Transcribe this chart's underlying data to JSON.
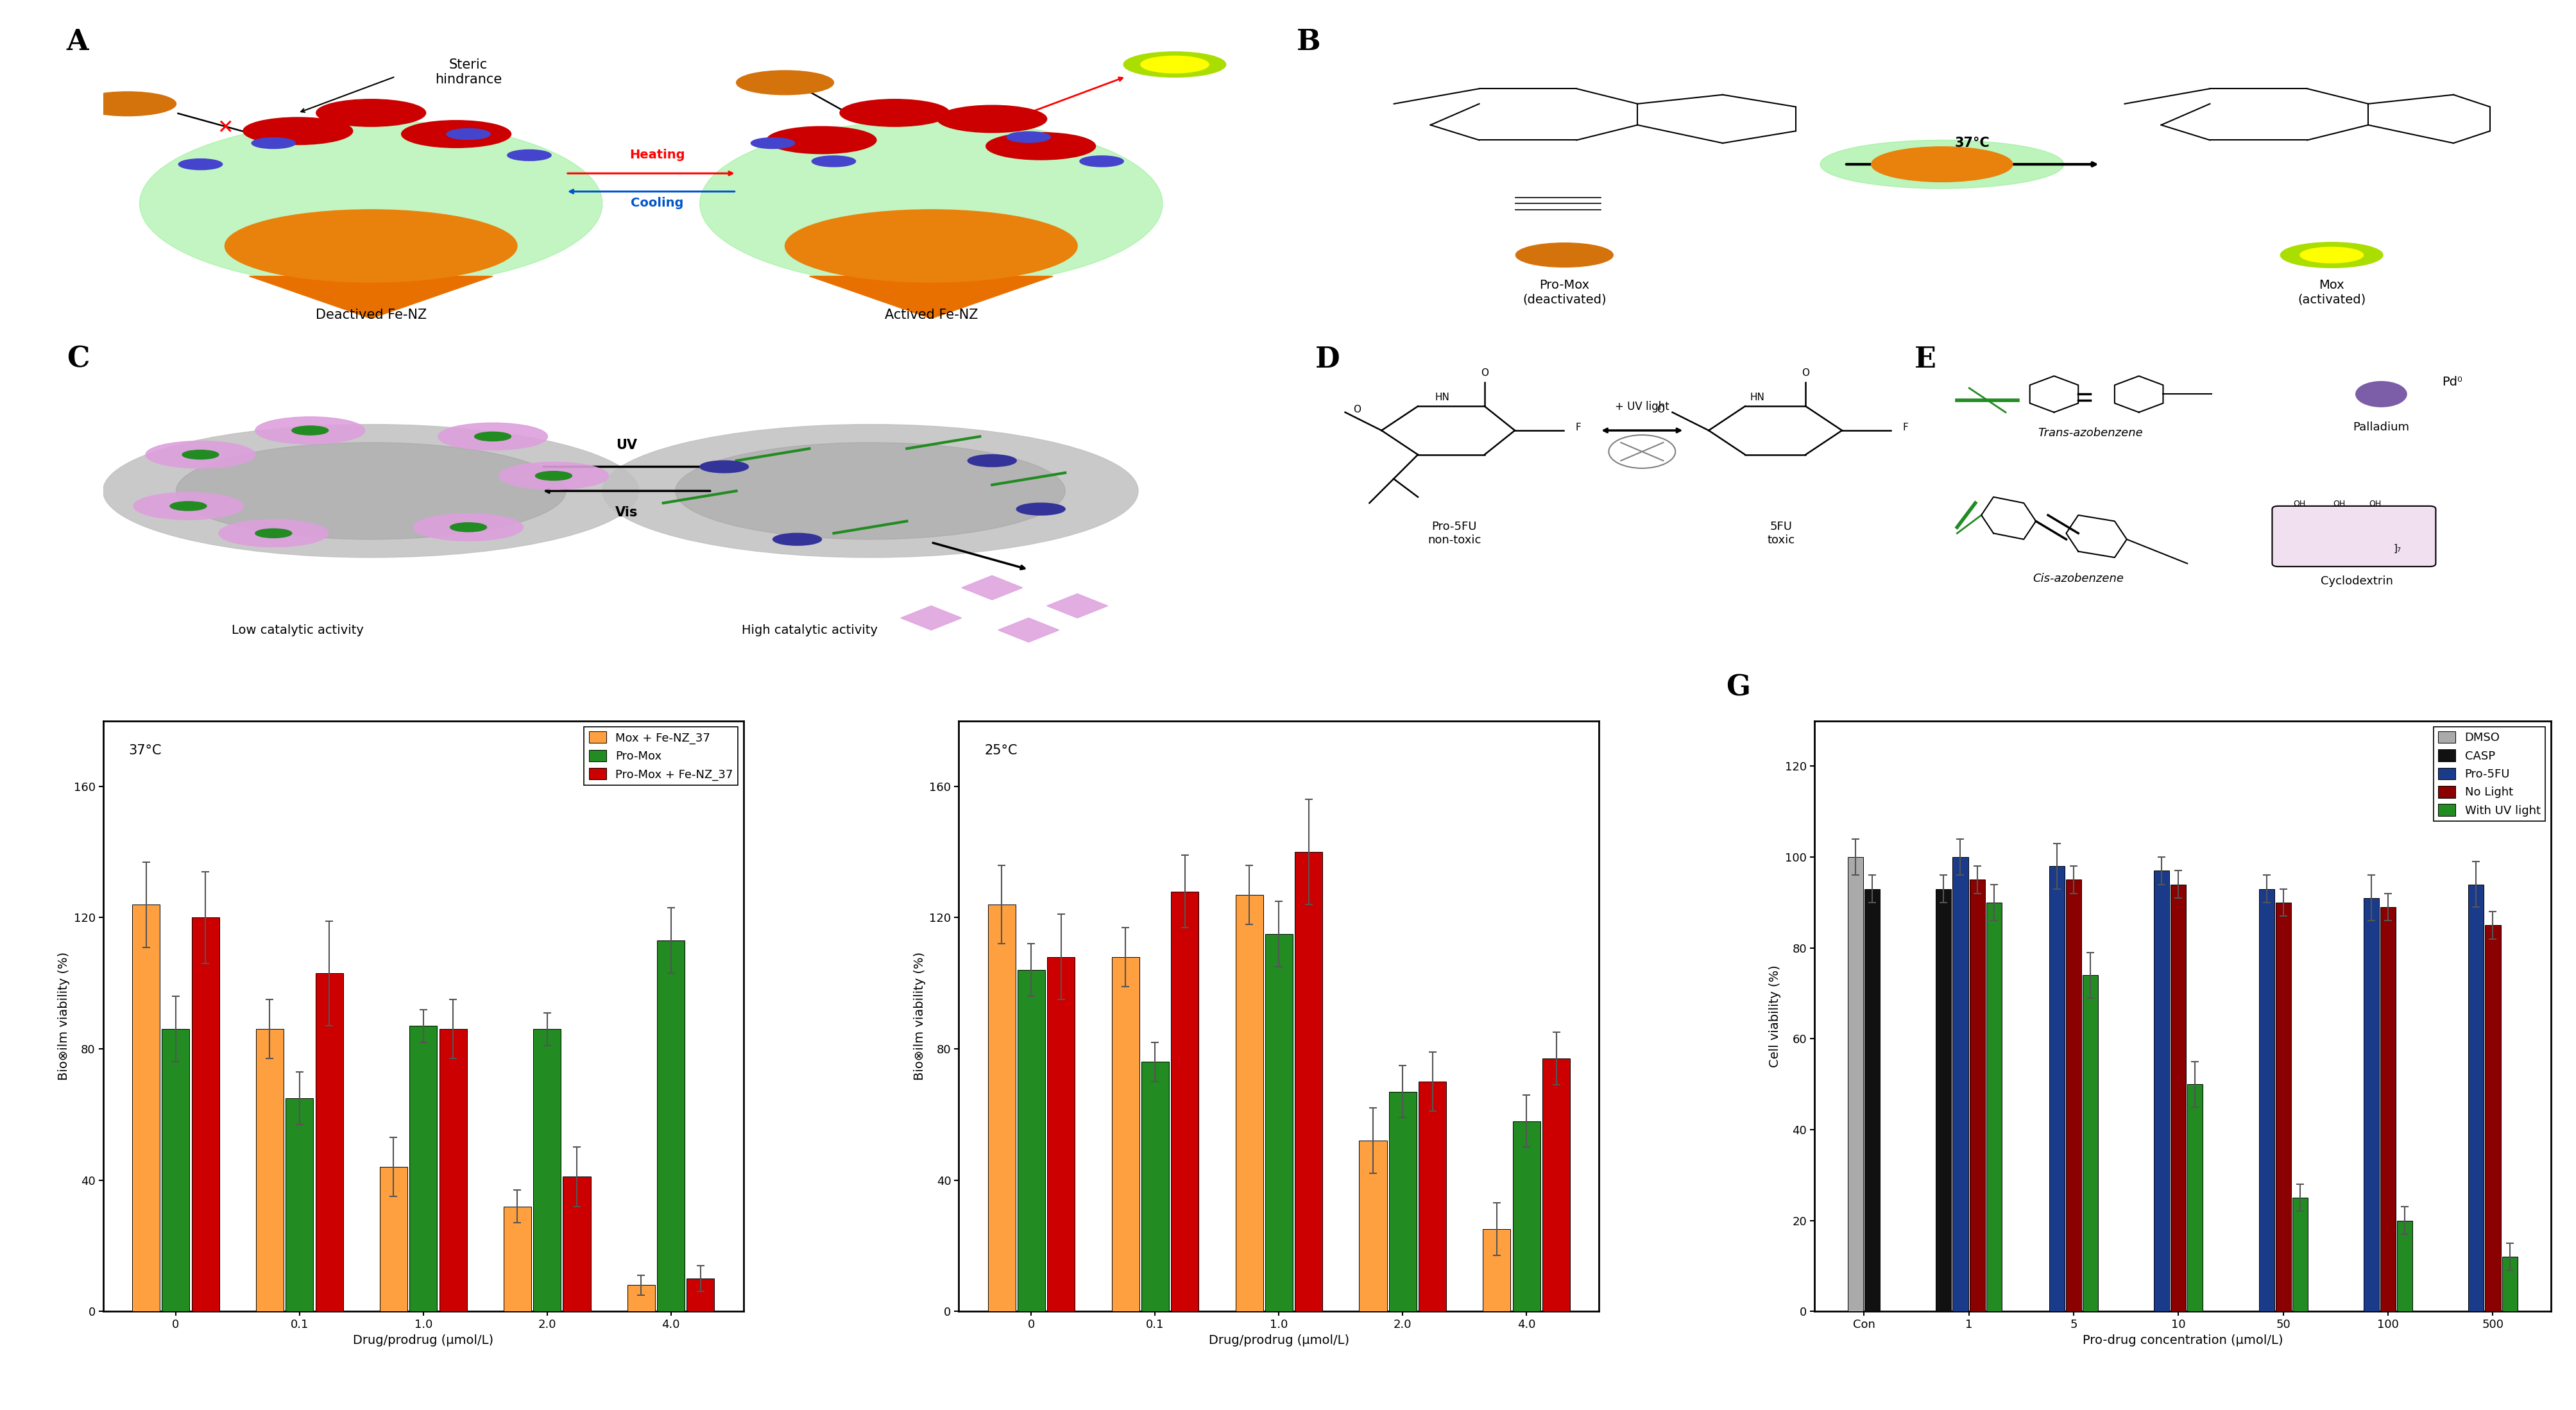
{
  "panel_F_37": {
    "title": "37°C",
    "xlabel": "Drug/prodrug (μmol/L)",
    "ylabel": "Bio⊗ilm viability (%)",
    "categories": [
      "0",
      "0.1",
      "1.0",
      "2.0",
      "4.0"
    ],
    "series": [
      {
        "name": "Mox + Fe-NZ_37",
        "values": [
          124,
          86,
          44,
          32,
          8
        ],
        "errors": [
          13,
          9,
          9,
          5,
          3
        ],
        "color": "#FFA040"
      },
      {
        "name": "Pro-Mox",
        "values": [
          86,
          65,
          87,
          86,
          113
        ],
        "errors": [
          10,
          8,
          5,
          5,
          10
        ],
        "color": "#228B22"
      },
      {
        "name": "Pro-Mox + Fe-NZ_37",
        "values": [
          120,
          103,
          86,
          41,
          10
        ],
        "errors": [
          14,
          16,
          9,
          9,
          4
        ],
        "color": "#CC0000"
      }
    ],
    "ylim": [
      0,
      180
    ],
    "yticks": [
      0,
      40,
      80,
      120,
      160
    ]
  },
  "panel_F_25": {
    "title": "25°C",
    "xlabel": "Drug/prodrug (μmol/L)",
    "ylabel": "Bio⊗ilm viability (%)",
    "categories": [
      "0",
      "0.1",
      "1.0",
      "2.0",
      "4.0"
    ],
    "series": [
      {
        "name": "Mox + Fe-NZ_37",
        "values": [
          124,
          108,
          127,
          52,
          25
        ],
        "errors": [
          12,
          9,
          9,
          10,
          8
        ],
        "color": "#FFA040"
      },
      {
        "name": "Pro-Mox",
        "values": [
          104,
          76,
          115,
          67,
          58
        ],
        "errors": [
          8,
          6,
          10,
          8,
          8
        ],
        "color": "#228B22"
      },
      {
        "name": "Pro-Mox + Fe-NZ_37",
        "values": [
          108,
          128,
          140,
          70,
          77
        ],
        "errors": [
          13,
          11,
          16,
          9,
          8
        ],
        "color": "#CC0000"
      }
    ],
    "ylim": [
      0,
      180
    ],
    "yticks": [
      0,
      40,
      80,
      120,
      160
    ]
  },
  "panel_G": {
    "xlabel": "Pro-drug concentration (μmol/L)",
    "ylabel": "Cell viability (%)",
    "categories": [
      "Con",
      "1",
      "5",
      "10",
      "50",
      "100",
      "500"
    ],
    "ylim": [
      0,
      130
    ],
    "yticks": [
      0,
      20,
      40,
      60,
      80,
      100,
      120
    ],
    "color_map": {
      "DMSO": "#AAAAAA",
      "CASP": "#111111",
      "Pro-5FU": "#1A3A8A",
      "No Light": "#8B0000",
      "With UV light": "#228B22"
    },
    "G_data": {
      "DMSO": {
        "Con": 100
      },
      "CASP": {
        "Con": 93,
        "1": 93
      },
      "Pro-5FU": {
        "1": 100,
        "5": 98,
        "10": 97,
        "50": 93,
        "100": 91,
        "500": 94
      },
      "No Light": {
        "1": 95,
        "5": 95,
        "10": 94,
        "50": 90,
        "100": 89,
        "500": 85
      },
      "With UV light": {
        "1": 90,
        "5": 74,
        "10": 50,
        "50": 25,
        "100": 20,
        "500": 12
      }
    },
    "G_errors": {
      "DMSO": {
        "Con": 4
      },
      "CASP": {
        "Con": 3,
        "1": 3
      },
      "Pro-5FU": {
        "1": 4,
        "5": 5,
        "10": 3,
        "50": 3,
        "100": 5,
        "500": 5
      },
      "No Light": {
        "1": 3,
        "5": 3,
        "10": 3,
        "50": 3,
        "100": 3,
        "500": 3
      },
      "With UV light": {
        "1": 4,
        "5": 5,
        "10": 5,
        "50": 3,
        "100": 3,
        "500": 3
      }
    },
    "groups": {
      "Con": [
        "DMSO",
        "CASP"
      ],
      "1": [
        "CASP",
        "Pro-5FU",
        "No Light",
        "With UV light"
      ],
      "5": [
        "Pro-5FU",
        "No Light",
        "With UV light"
      ],
      "10": [
        "Pro-5FU",
        "No Light",
        "With UV light"
      ],
      "50": [
        "Pro-5FU",
        "No Light",
        "With UV light"
      ],
      "100": [
        "Pro-5FU",
        "No Light",
        "With UV light"
      ],
      "500": [
        "Pro-5FU",
        "No Light",
        "With UV light"
      ]
    }
  },
  "figure_bg": "#FFFFFF",
  "panel_label_fontsize": 32,
  "axis_label_fontsize": 14,
  "tick_label_fontsize": 13,
  "legend_fontsize": 13,
  "bar_title_fontsize": 15
}
